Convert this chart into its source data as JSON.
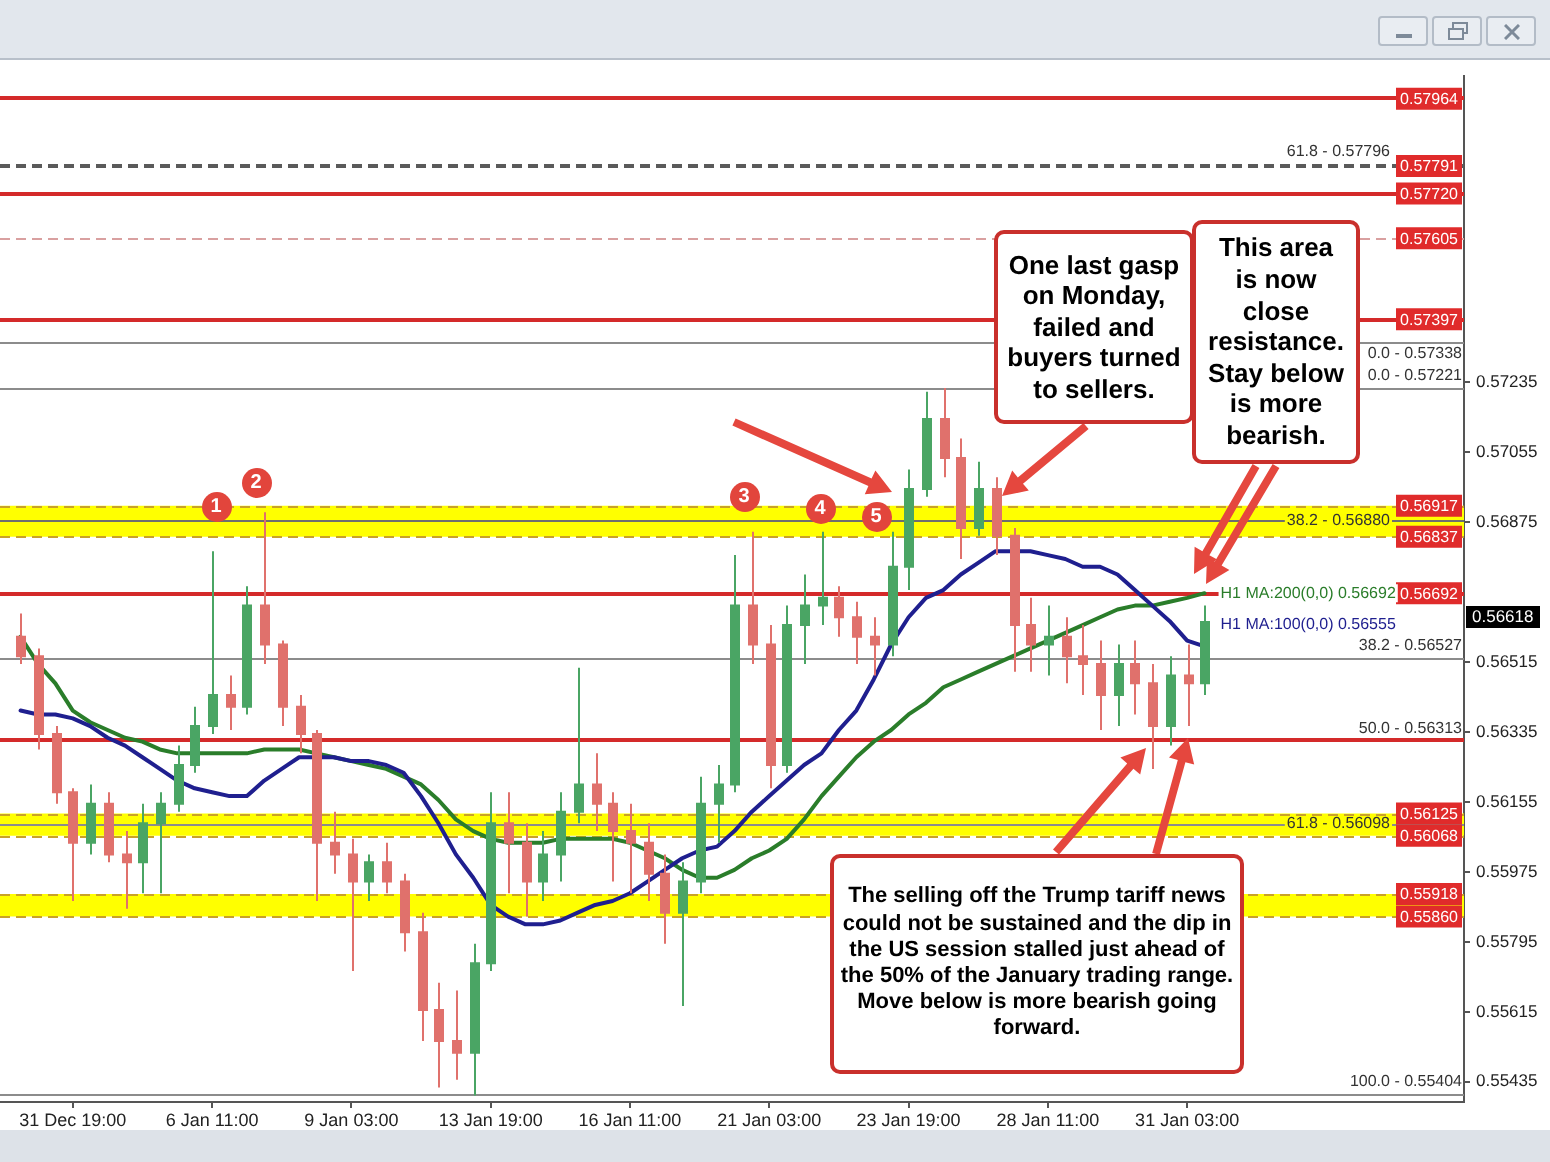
{
  "chart_data": {
    "type": "candlestick",
    "categories": [
      null,
      null,
      null,
      "31 Dec 19:00",
      null,
      null,
      null,
      null,
      null,
      null,
      null,
      "6 Jan 11:00",
      null,
      null,
      null,
      null,
      null,
      null,
      null,
      "9 Jan 03:00",
      null,
      null,
      null,
      null,
      null,
      null,
      null,
      "13 Jan 19:00",
      null,
      null,
      null,
      null,
      null,
      null,
      null,
      "16 Jan 11:00",
      null,
      null,
      null,
      null,
      null,
      null,
      null,
      "21 Jan 03:00",
      null,
      null,
      null,
      null,
      null,
      null,
      null,
      "23 Jan 19:00",
      null,
      null,
      null,
      null,
      null,
      null,
      null,
      "28 Jan 11:00",
      null,
      null,
      null,
      null,
      null,
      null,
      null,
      "31 Jan 03:00",
      null
    ],
    "ohlc": [
      [
        0.5658,
        0.5664,
        0.5651,
        0.5653
      ],
      [
        0.5653,
        0.5655,
        0.5629,
        0.5633
      ],
      [
        0.5633,
        0.5635,
        0.5615,
        0.5618
      ],
      [
        0.5618,
        0.5619,
        0.559,
        0.5605
      ],
      [
        0.5605,
        0.562,
        0.5602,
        0.5615
      ],
      [
        0.5615,
        0.5618,
        0.56,
        0.5602
      ],
      [
        0.5602,
        0.5608,
        0.5588,
        0.56
      ],
      [
        0.56,
        0.5615,
        0.5592,
        0.561
      ],
      [
        0.561,
        0.5618,
        0.5592,
        0.5615
      ],
      [
        0.5615,
        0.563,
        0.5613,
        0.5625
      ],
      [
        0.5625,
        0.564,
        0.5623,
        0.5635
      ],
      [
        0.5635,
        0.568,
        0.5633,
        0.5643
      ],
      [
        0.5643,
        0.5648,
        0.5634,
        0.564
      ],
      [
        0.564,
        0.5671,
        0.5638,
        0.5666
      ],
      [
        0.5666,
        0.569,
        0.5651,
        0.5656
      ],
      [
        0.5656,
        0.5657,
        0.5635,
        0.564
      ],
      [
        0.564,
        0.5643,
        0.5628,
        0.5633
      ],
      [
        0.5633,
        0.5634,
        0.559,
        0.5605
      ],
      [
        0.5605,
        0.5613,
        0.5597,
        0.5602
      ],
      [
        0.5602,
        0.5606,
        0.5572,
        0.5595
      ],
      [
        0.5595,
        0.5602,
        0.559,
        0.56
      ],
      [
        0.56,
        0.5605,
        0.5592,
        0.5595
      ],
      [
        0.5595,
        0.5597,
        0.5577,
        0.5582
      ],
      [
        0.5582,
        0.5587,
        0.5554,
        0.5562
      ],
      [
        0.5562,
        0.5569,
        0.5542,
        0.5554
      ],
      [
        0.5554,
        0.5567,
        0.5544,
        0.5551
      ],
      [
        0.5551,
        0.5579,
        0.554,
        0.5574
      ],
      [
        0.5574,
        0.5618,
        0.5572,
        0.561
      ],
      [
        0.561,
        0.5618,
        0.5592,
        0.5605
      ],
      [
        0.5605,
        0.561,
        0.5586,
        0.5595
      ],
      [
        0.5595,
        0.5608,
        0.559,
        0.5602
      ],
      [
        0.5602,
        0.5618,
        0.5595,
        0.5613
      ],
      [
        0.5613,
        0.565,
        0.561,
        0.562
      ],
      [
        0.562,
        0.5628,
        0.5608,
        0.5615
      ],
      [
        0.5615,
        0.5618,
        0.5595,
        0.5608
      ],
      [
        0.5608,
        0.5615,
        0.5592,
        0.5605
      ],
      [
        0.5605,
        0.561,
        0.559,
        0.5597
      ],
      [
        0.5597,
        0.5602,
        0.5579,
        0.5587
      ],
      [
        0.5587,
        0.56,
        0.5563,
        0.5595
      ],
      [
        0.5595,
        0.5622,
        0.5592,
        0.5615
      ],
      [
        0.5615,
        0.5625,
        0.5605,
        0.562
      ],
      [
        0.562,
        0.5679,
        0.5618,
        0.5666
      ],
      [
        0.5666,
        0.5685,
        0.5651,
        0.5656
      ],
      [
        0.5656,
        0.5661,
        0.5619,
        0.5625
      ],
      [
        0.5625,
        0.5666,
        0.5623,
        0.5661
      ],
      [
        0.5661,
        0.5674,
        0.5651,
        0.5666
      ],
      [
        0.5666,
        0.5685,
        0.5661,
        0.5668
      ],
      [
        0.5668,
        0.5671,
        0.5658,
        0.5663
      ],
      [
        0.5663,
        0.5667,
        0.5651,
        0.5658
      ],
      [
        0.5658,
        0.5663,
        0.5648,
        0.5656
      ],
      [
        0.5656,
        0.5685,
        0.5653,
        0.5676
      ],
      [
        0.5676,
        0.5701,
        0.567,
        0.5696
      ],
      [
        0.5696,
        0.5721,
        0.5694,
        0.5714
      ],
      [
        0.5714,
        0.5722,
        0.5699,
        0.5704
      ],
      [
        0.5704,
        0.5709,
        0.5678,
        0.5686
      ],
      [
        0.5686,
        0.5703,
        0.5684,
        0.5696
      ],
      [
        0.5696,
        0.5699,
        0.5679,
        0.5684
      ],
      [
        0.5684,
        0.5686,
        0.5649,
        0.5661
      ],
      [
        0.5661,
        0.5668,
        0.5649,
        0.5656
      ],
      [
        0.5656,
        0.5666,
        0.5648,
        0.5658
      ],
      [
        0.5658,
        0.5663,
        0.5646,
        0.5653
      ],
      [
        0.5653,
        0.5661,
        0.5643,
        0.5651
      ],
      [
        0.5651,
        0.5657,
        0.5634,
        0.5643
      ],
      [
        0.5643,
        0.5656,
        0.5635,
        0.5651
      ],
      [
        0.5651,
        0.5657,
        0.5638,
        0.5646
      ],
      [
        0.5646,
        0.5651,
        0.5624,
        0.5635
      ],
      [
        0.5635,
        0.5653,
        0.563,
        0.5648
      ],
      [
        0.5648,
        0.5656,
        0.5635,
        0.5646
      ],
      [
        0.5646,
        0.5666,
        0.5643,
        0.56618
      ]
    ],
    "colors": [
      "#e0716c",
      "#e0716c",
      "#e0716c",
      "#e0716c",
      "#4aa564",
      "#e0716c",
      "#e0716c",
      "#4aa564",
      "#4aa564",
      "#4aa564",
      "#4aa564",
      "#4aa564",
      "#e0716c",
      "#4aa564",
      "#e0716c",
      "#e0716c",
      "#e0716c",
      "#e0716c",
      "#e0716c",
      "#e0716c",
      "#4aa564",
      "#e0716c",
      "#e0716c",
      "#e0716c",
      "#e0716c",
      "#e0716c",
      "#4aa564",
      "#4aa564",
      "#e0716c",
      "#e0716c",
      "#4aa564",
      "#4aa564",
      "#4aa564",
      "#e0716c",
      "#e0716c",
      "#e0716c",
      "#e0716c",
      "#e0716c",
      "#4aa564",
      "#4aa564",
      "#4aa564",
      "#4aa564",
      "#e0716c",
      "#e0716c",
      "#4aa564",
      "#4aa564",
      "#4aa564",
      "#e0716c",
      "#e0716c",
      "#e0716c",
      "#4aa564",
      "#4aa564",
      "#4aa564",
      "#e0716c",
      "#e0716c",
      "#4aa564",
      "#e0716c",
      "#e0716c",
      "#e0716c",
      "#4aa564",
      "#e0716c",
      "#e0716c",
      "#e0716c",
      "#4aa564",
      "#e0716c",
      "#e0716c",
      "#4aa564",
      "#e0716c",
      "#4aa564"
    ],
    "series": [
      {
        "name": "H1 MA:100(0,0) 0.56555",
        "type": "line",
        "color": "#1f1f8f",
        "values": [
          0.5639,
          0.5638,
          0.5638,
          0.5637,
          0.5635,
          0.5632,
          0.563,
          0.5627,
          0.5624,
          0.5621,
          0.5619,
          0.5618,
          0.5617,
          0.5617,
          0.5621,
          0.5624,
          0.5627,
          0.5627,
          0.5627,
          0.5626,
          0.5626,
          0.5625,
          0.5623,
          0.5617,
          0.561,
          0.5602,
          0.5596,
          0.5589,
          0.5586,
          0.5584,
          0.5584,
          0.5585,
          0.5587,
          0.5589,
          0.559,
          0.5592,
          0.5595,
          0.5598,
          0.5601,
          0.5603,
          0.5604,
          0.5608,
          0.5613,
          0.5617,
          0.5621,
          0.5625,
          0.5628,
          0.5634,
          0.5639,
          0.5647,
          0.5656,
          0.5663,
          0.5668,
          0.567,
          0.5674,
          0.5677,
          0.568,
          0.568,
          0.568,
          0.5679,
          0.5678,
          0.5676,
          0.5676,
          0.5674,
          0.567,
          0.5666,
          0.5662,
          0.5657,
          0.56555
        ]
      },
      {
        "name": "H1 MA:200(0,0) 0.56692",
        "type": "line",
        "color": "#2a7d2a",
        "values": [
          0.5658,
          0.5651,
          0.5646,
          0.5639,
          0.5636,
          0.5634,
          0.5632,
          0.5631,
          0.5629,
          0.5628,
          0.5628,
          0.5628,
          0.5628,
          0.5628,
          0.5629,
          0.5629,
          0.5629,
          0.5628,
          0.5627,
          0.5626,
          0.5625,
          0.5624,
          0.5622,
          0.562,
          0.5616,
          0.5611,
          0.5608,
          0.5606,
          0.5605,
          0.5605,
          0.5605,
          0.5606,
          0.5606,
          0.5606,
          0.5606,
          0.5605,
          0.5603,
          0.5601,
          0.5598,
          0.5596,
          0.5596,
          0.5598,
          0.5601,
          0.5603,
          0.5606,
          0.5611,
          0.5617,
          0.5622,
          0.5627,
          0.5631,
          0.5634,
          0.5638,
          0.5641,
          0.5645,
          0.5647,
          0.5649,
          0.5651,
          0.5653,
          0.5655,
          0.5657,
          0.5659,
          0.5661,
          0.5663,
          0.5665,
          0.5666,
          0.5666,
          0.5667,
          0.5668,
          0.56692
        ]
      }
    ],
    "ylim": [
      0.55383,
      0.58022
    ],
    "yticks": [
      0.55435,
      0.55615,
      0.55795,
      0.55975,
      0.56155,
      0.56335,
      0.56515,
      0.56875,
      0.57055,
      0.57235
    ],
    "bands": [
      {
        "axis": "y",
        "from": 0.56837,
        "to": 0.56917,
        "color": "#ffff00"
      },
      {
        "axis": "y",
        "from": 0.56068,
        "to": 0.56125,
        "color": "#ffff00"
      },
      {
        "axis": "y",
        "from": 0.5586,
        "to": 0.55918,
        "color": "#ffff00"
      }
    ],
    "ref_lines": [
      {
        "axis": "y",
        "value": 0.57964,
        "label": "0.57964",
        "color": "#d42a2a",
        "line_style": "solid"
      },
      {
        "axis": "y",
        "value": 0.57796,
        "color": "#5a5a5a",
        "line_style": "dashed"
      },
      {
        "axis": "y",
        "value": 0.57791,
        "label": "0.57791",
        "color": "#5a5a5a",
        "line_style": "dashed"
      },
      {
        "axis": "y",
        "value": 0.5772,
        "label": "0.57720",
        "color": "#d42a2a",
        "line_style": "solid"
      },
      {
        "axis": "y",
        "value": 0.57605,
        "label": "0.57605",
        "color": "#d9a0a0",
        "line_style": "dashed"
      },
      {
        "axis": "y",
        "value": 0.57397,
        "label": "0.57397",
        "color": "#d42a2a",
        "line_style": "solid"
      },
      {
        "axis": "y",
        "value": 0.57338,
        "color": "#8c8c8c",
        "line_style": "solid"
      },
      {
        "axis": "y",
        "value": 0.57221,
        "color": "#8c8c8c",
        "line_style": "solid"
      },
      {
        "axis": "y",
        "value": 0.56917,
        "label": "0.56917",
        "color": "#c9a227",
        "line_style": "dashed"
      },
      {
        "axis": "y",
        "value": 0.5688,
        "color": "#6e6e6e",
        "line_style": "solid"
      },
      {
        "axis": "y",
        "value": 0.56837,
        "label": "0.56837",
        "color": "#c9a227",
        "line_style": "dashed"
      },
      {
        "axis": "y",
        "value": 0.56692,
        "label": "0.56692",
        "color": "#d42a2a",
        "line_style": "solid"
      },
      {
        "axis": "y",
        "value": 0.56527,
        "color": "#8c8c8c",
        "line_style": "solid"
      },
      {
        "axis": "y",
        "value": 0.56313,
        "color": "#d42a2a",
        "line_style": "solid"
      },
      {
        "axis": "y",
        "value": 0.56125,
        "label": "0.56125",
        "color": "#c9a227",
        "line_style": "dashed"
      },
      {
        "axis": "y",
        "value": 0.56098,
        "color": "#8c8c8c",
        "line_style": "solid"
      },
      {
        "axis": "y",
        "value": 0.56068,
        "label": "0.56068",
        "color": "#c9a227",
        "line_style": "dashed"
      },
      {
        "axis": "y",
        "value": 0.55918,
        "label": "0.55918",
        "color": "#c9a227",
        "line_style": "dashed"
      },
      {
        "axis": "y",
        "value": 0.5586,
        "label": "0.55860",
        "color": "#c9a227",
        "line_style": "dashed"
      },
      {
        "axis": "y",
        "value": 0.55404,
        "color": "#8c8c8c",
        "line_style": "solid"
      }
    ],
    "annotations": [
      "1",
      "2",
      "3",
      "4",
      "5",
      "One last gasp on Monday, failed and buyers turned to sellers.",
      "This area is now close resistance. Stay below is more bearish.",
      "The selling off the Trump tariff news could not be sustained and the dip in the US session stalled just ahead of the 50% of the January trading range. Move below is more bearish going forward.",
      "0.56618",
      {
        "text": "61.8 - 0.57796",
        "y": 0.57796
      },
      {
        "text": "0.0 - 0.57338",
        "y": 0.57338
      },
      {
        "text": "0.0 - 0.57221",
        "y": 0.57221
      },
      {
        "text": "38.2 - 0.56880",
        "y": 0.5688
      },
      {
        "text": "38.2 - 0.56527",
        "y": 0.56527
      },
      {
        "text": "50.0 - 0.56313",
        "y": 0.56313
      },
      {
        "text": "61.8 - 0.56098",
        "y": 0.56098
      },
      {
        "text": "100.0 - 0.55404",
        "y": 0.55404
      }
    ]
  }
}
